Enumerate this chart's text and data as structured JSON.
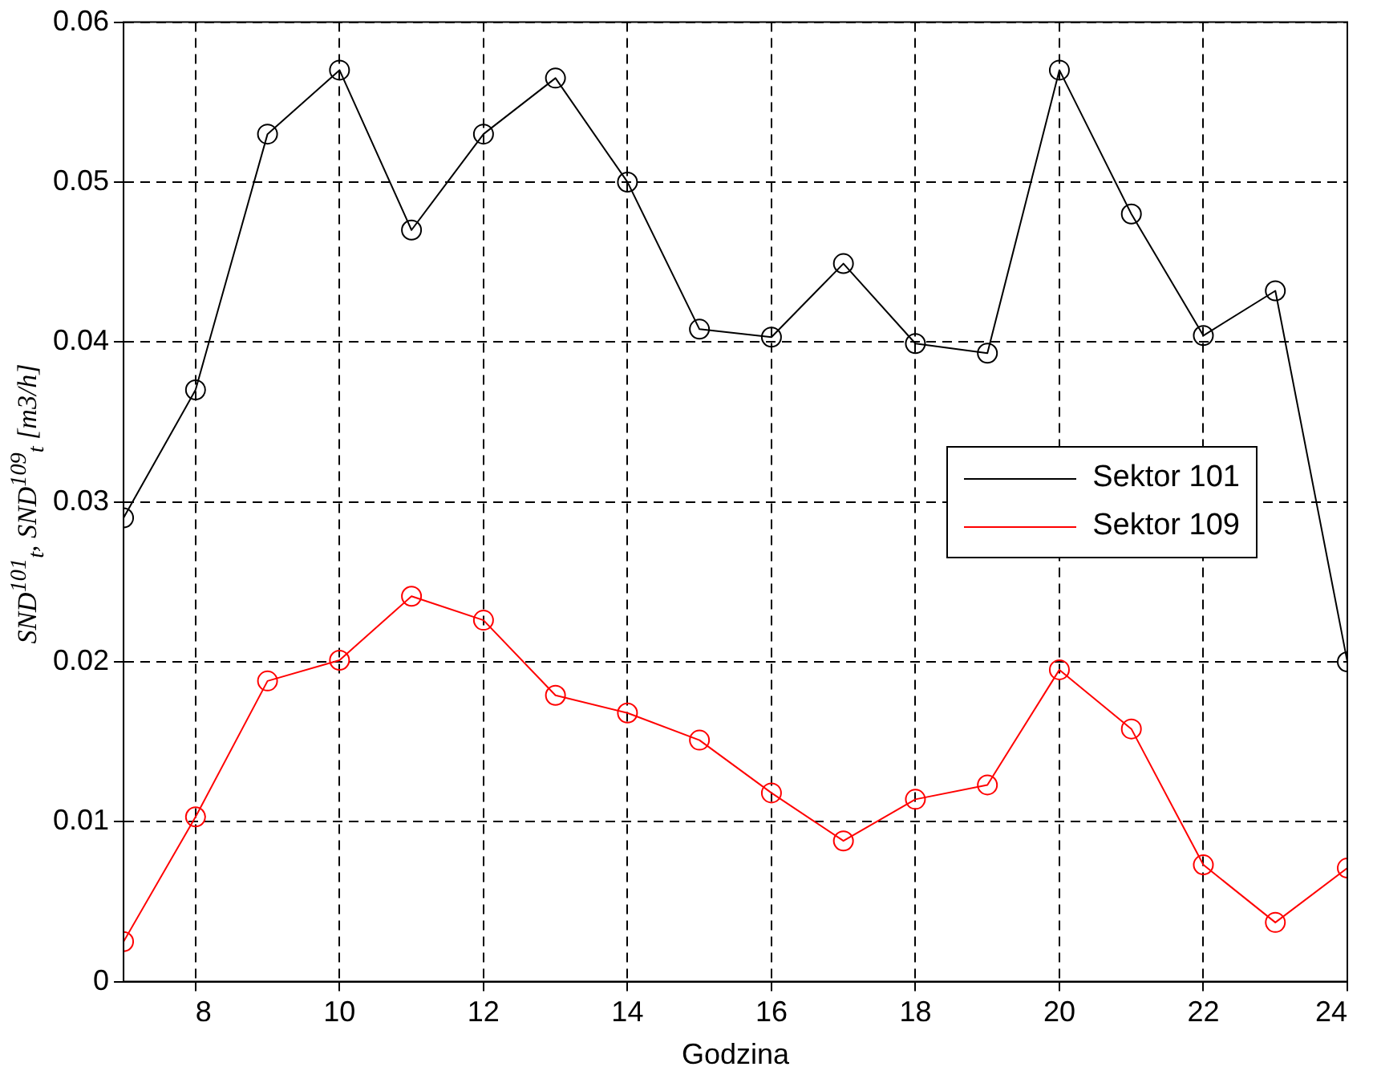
{
  "chart_data": {
    "type": "line",
    "xlabel": "Godzina",
    "ylabel": "SND$^{101}$$_{t}$, SND$^{109}$$_{t}$ [m3/h]",
    "x": [
      7,
      8,
      9,
      10,
      11,
      12,
      13,
      14,
      15,
      16,
      17,
      18,
      19,
      20,
      21,
      22,
      23,
      24
    ],
    "series": [
      {
        "name": "Sektor 101",
        "color": "#000000",
        "values": [
          0.029,
          0.037,
          0.053,
          0.057,
          0.047,
          0.053,
          0.0565,
          0.05,
          0.0408,
          0.0403,
          0.0449,
          0.0399,
          0.0393,
          0.057,
          0.048,
          0.0404,
          0.0432,
          0.02
        ]
      },
      {
        "name": "Sektor 109",
        "color": "#ff0000",
        "values": [
          0.0025,
          0.0103,
          0.0188,
          0.0201,
          0.0241,
          0.0226,
          0.0179,
          0.0168,
          0.0151,
          0.0118,
          0.0088,
          0.0114,
          0.0123,
          0.0195,
          0.0158,
          0.0073,
          0.0037,
          0.0071
        ]
      }
    ],
    "xlim": [
      7,
      24
    ],
    "xticks": [
      8,
      10,
      12,
      14,
      16,
      18,
      20,
      22,
      24
    ],
    "ylim": [
      0,
      0.06
    ],
    "yticks": [
      0,
      0.01,
      0.02,
      0.03,
      0.04,
      0.05,
      0.06
    ],
    "grid": true,
    "legend": "right",
    "marker": "circle",
    "line_style": "solid"
  }
}
